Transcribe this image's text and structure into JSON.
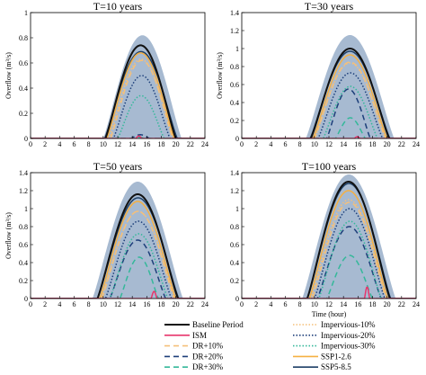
{
  "chart_data": [
    {
      "type": "line",
      "title": "T=10 years",
      "xlabel": "",
      "ylabel": "Overflow (m³/s)",
      "xlim": [
        0,
        24
      ],
      "ylim": [
        0,
        1.0
      ],
      "xticks": [
        0,
        2,
        4,
        6,
        8,
        10,
        12,
        14,
        16,
        18,
        20,
        22,
        24
      ],
      "yticks": [
        0,
        0.2,
        0.4,
        0.6,
        0.8,
        1
      ],
      "band": {
        "start": 10.0,
        "end": 20.8,
        "peak": 0.82
      },
      "series": [
        {
          "name": "Baseline Period",
          "start": 10.3,
          "end": 20.0,
          "peak": 0.74
        },
        {
          "name": "ISM",
          "start": 14.5,
          "end": 15.3,
          "peak": 0.02
        },
        {
          "name": "DR+10%",
          "start": 11.0,
          "end": 19.6,
          "peak": 0.62
        },
        {
          "name": "DR+20%",
          "start": 13.8,
          "end": 16.4,
          "peak": 0.03
        },
        {
          "name": "DR+30%",
          "start": 14.4,
          "end": 15.6,
          "peak": 0.01
        },
        {
          "name": "Impervious-10%",
          "start": 10.8,
          "end": 19.6,
          "peak": 0.63
        },
        {
          "name": "Impervious-20%",
          "start": 11.4,
          "end": 19.2,
          "peak": 0.5
        },
        {
          "name": "Impervious-30%",
          "start": 12.0,
          "end": 18.4,
          "peak": 0.34
        },
        {
          "name": "SSP1-2.6",
          "start": 10.5,
          "end": 19.8,
          "peak": 0.68
        },
        {
          "name": "SSP5-8.5",
          "start": 10.2,
          "end": 20.2,
          "peak": 0.69
        }
      ]
    },
    {
      "type": "line",
      "title": "T=30 years",
      "xlabel": "",
      "ylabel": "Overflow (m³/s)",
      "xlim": [
        0,
        24
      ],
      "ylim": [
        0,
        1.4
      ],
      "xticks": [
        0,
        2,
        4,
        6,
        8,
        10,
        12,
        14,
        16,
        18,
        20,
        22,
        24
      ],
      "yticks": [
        0,
        0.2,
        0.4,
        0.6,
        0.8,
        1,
        1.2,
        1.4
      ],
      "band": {
        "start": 8.8,
        "end": 21.0,
        "peak": 1.15
      },
      "series": [
        {
          "name": "Baseline Period",
          "start": 9.5,
          "end": 20.3,
          "peak": 1.0
        },
        {
          "name": "ISM",
          "start": 15.5,
          "end": 16.3,
          "peak": 0.02
        },
        {
          "name": "DR+10%",
          "start": 10.0,
          "end": 19.8,
          "peak": 0.85
        },
        {
          "name": "DR+20%",
          "start": 11.7,
          "end": 17.7,
          "peak": 0.55
        },
        {
          "name": "DR+30%",
          "start": 12.9,
          "end": 17.0,
          "peak": 0.23
        },
        {
          "name": "Impervious-10%",
          "start": 10.0,
          "end": 19.8,
          "peak": 0.84
        },
        {
          "name": "Impervious-20%",
          "start": 10.5,
          "end": 19.4,
          "peak": 0.73
        },
        {
          "name": "Impervious-30%",
          "start": 11.2,
          "end": 18.7,
          "peak": 0.58
        },
        {
          "name": "SSP1-2.6",
          "start": 9.8,
          "end": 20.0,
          "peak": 0.93
        },
        {
          "name": "SSP5-8.5",
          "start": 9.4,
          "end": 20.4,
          "peak": 0.97
        }
      ]
    },
    {
      "type": "line",
      "title": "T=50 years",
      "xlabel": "",
      "ylabel": "Overflow (m³/s)",
      "xlim": [
        0,
        24
      ],
      "ylim": [
        0,
        1.4
      ],
      "xticks": [
        0,
        2,
        4,
        6,
        8,
        10,
        12,
        14,
        16,
        18,
        20,
        22,
        24
      ],
      "yticks": [
        0,
        0.2,
        0.4,
        0.6,
        0.8,
        1,
        1.2,
        1.4
      ],
      "band": {
        "start": 8.5,
        "end": 21.0,
        "peak": 1.3
      },
      "series": [
        {
          "name": "Baseline Period",
          "start": 9.2,
          "end": 20.3,
          "peak": 1.16
        },
        {
          "name": "ISM",
          "start": 16.6,
          "end": 17.4,
          "peak": 0.08
        },
        {
          "name": "DR+10%",
          "start": 9.8,
          "end": 19.8,
          "peak": 0.97
        },
        {
          "name": "DR+20%",
          "start": 10.9,
          "end": 18.6,
          "peak": 0.65
        },
        {
          "name": "DR+30%",
          "start": 12.3,
          "end": 17.6,
          "peak": 0.46
        },
        {
          "name": "Impervious-10%",
          "start": 9.7,
          "end": 19.9,
          "peak": 0.97
        },
        {
          "name": "Impervious-20%",
          "start": 10.3,
          "end": 19.4,
          "peak": 0.86
        },
        {
          "name": "Impervious-30%",
          "start": 10.9,
          "end": 18.9,
          "peak": 0.72
        },
        {
          "name": "SSP1-2.6",
          "start": 9.5,
          "end": 20.0,
          "peak": 1.08
        },
        {
          "name": "SSP5-8.5",
          "start": 9.2,
          "end": 20.4,
          "peak": 1.12
        }
      ]
    },
    {
      "type": "line",
      "title": "T=100 years",
      "xlabel": "Time (hour)",
      "ylabel": "",
      "xlim": [
        0,
        24
      ],
      "ylim": [
        0,
        1.4
      ],
      "xticks": [
        0,
        2,
        4,
        6,
        8,
        10,
        12,
        14,
        16,
        18,
        20,
        22,
        24
      ],
      "yticks": [
        0,
        0.2,
        0.4,
        0.6,
        0.8,
        1,
        1.2,
        1.4
      ],
      "band": {
        "start": 8.3,
        "end": 21.2,
        "peak": 1.38
      },
      "series": [
        {
          "name": "Baseline Period",
          "start": 9.0,
          "end": 20.4,
          "peak": 1.3
        },
        {
          "name": "ISM",
          "start": 16.9,
          "end": 17.6,
          "peak": 0.13
        },
        {
          "name": "DR+10%",
          "start": 9.7,
          "end": 19.9,
          "peak": 1.07
        },
        {
          "name": "DR+20%",
          "start": 10.4,
          "end": 19.2,
          "peak": 0.8
        },
        {
          "name": "DR+30%",
          "start": 11.7,
          "end": 18.0,
          "peak": 0.48
        },
        {
          "name": "Impervious-10%",
          "start": 9.5,
          "end": 20.0,
          "peak": 1.1
        },
        {
          "name": "Impervious-20%",
          "start": 10.0,
          "end": 19.7,
          "peak": 1.0
        },
        {
          "name": "Impervious-30%",
          "start": 10.6,
          "end": 19.2,
          "peak": 0.86
        },
        {
          "name": "SSP1-2.6",
          "start": 9.3,
          "end": 20.1,
          "peak": 1.2
        },
        {
          "name": "SSP5-8.5",
          "start": 9.0,
          "end": 20.5,
          "peak": 1.28
        }
      ]
    }
  ],
  "styles": {
    "Baseline Period": {
      "color": "#111111",
      "dash": "",
      "width": 2.0
    },
    "ISM": {
      "color": "#e8366c",
      "dash": "",
      "width": 1.5
    },
    "DR+10%": {
      "color": "#f5c07a",
      "dash": "6,4",
      "width": 1.5
    },
    "DR+20%": {
      "color": "#1d3f7a",
      "dash": "6,4",
      "width": 1.5
    },
    "DR+30%": {
      "color": "#35b89a",
      "dash": "6,4",
      "width": 1.5
    },
    "Impervious-10%": {
      "color": "#f5c07a",
      "dash": "1.5,2",
      "width": 1.5
    },
    "Impervious-20%": {
      "color": "#1d3f7a",
      "dash": "1.5,2",
      "width": 1.5
    },
    "Impervious-30%": {
      "color": "#35b89a",
      "dash": "1.5,2",
      "width": 1.5
    },
    "SSP1-2.6": {
      "color": "#f5b042",
      "dash": "",
      "width": 1.5
    },
    "SSP5-8.5": {
      "color": "#1d3f66",
      "dash": "",
      "width": 1.5
    },
    "band": "#5f81ab"
  },
  "legend": {
    "col1": [
      "Baseline Period",
      "ISM",
      "DR+10%",
      "DR+20%",
      "DR+30%"
    ],
    "col2": [
      "Impervious-10%",
      "Impervious-20%",
      "Impervious-30%",
      "SSP1-2.6",
      "SSP5-8.5"
    ]
  }
}
